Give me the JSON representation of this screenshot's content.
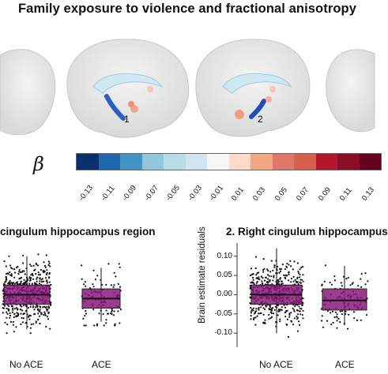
{
  "figure": {
    "title": "Family exposure to violence and fractional anisotropy",
    "brain_labels": [
      "1",
      "2"
    ],
    "beta_symbol": "β",
    "colorbar": {
      "ticks": [
        "-0.13",
        "-0.11",
        "-0.09",
        "-0.07",
        "-0.05",
        "-0.03",
        "-0.01",
        "0.01",
        "0.03",
        "0.05",
        "0.07",
        "0.09",
        "0.11",
        "0.13"
      ],
      "colors": [
        "#08306b",
        "#2166ac",
        "#4393c3",
        "#92c5de",
        "#b8dde9",
        "#d1e5f0",
        "#f7f7f7",
        "#fddbc7",
        "#f4a582",
        "#e0786a",
        "#d6604d",
        "#b2182b",
        "#8a0f26",
        "#67001f"
      ]
    }
  },
  "chart_data": [
    {
      "type": "box",
      "title": "cingulum hippocampus region",
      "xlabel": "",
      "ylabel": "",
      "categories": [
        "No ACE",
        "ACE"
      ],
      "box_color": "#8b1a7e",
      "boxes": [
        {
          "q1": -0.025,
          "median": 0.0,
          "q3": 0.025,
          "whisker_low": -0.09,
          "whisker_high": 0.1
        },
        {
          "q1": -0.035,
          "median": -0.01,
          "q3": 0.015,
          "whisker_low": -0.07,
          "whisker_high": 0.07
        }
      ]
    },
    {
      "type": "box",
      "title": "2. Right cingulum hippocampus",
      "xlabel": "",
      "ylabel": "Brain estimate residuals",
      "categories": [
        "No ACE",
        "ACE"
      ],
      "ylim": [
        -0.12,
        0.13
      ],
      "yticks": [
        "0.10",
        "0.05",
        "0.00",
        "-0.05",
        "-0.10"
      ],
      "box_color": "#8b1a7e",
      "boxes": [
        {
          "q1": -0.025,
          "median": 0.0,
          "q3": 0.025,
          "whisker_low": -0.1,
          "whisker_high": 0.12
        },
        {
          "q1": -0.04,
          "median": -0.015,
          "q3": 0.015,
          "whisker_low": -0.08,
          "whisker_high": 0.075
        }
      ]
    }
  ]
}
